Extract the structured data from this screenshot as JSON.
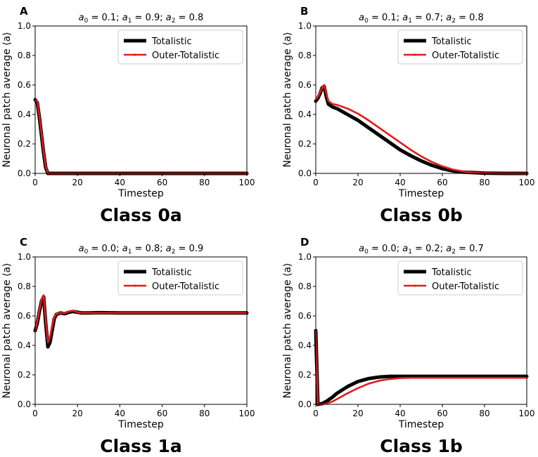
{
  "chart_data": [
    {
      "type": "line",
      "panel": "A",
      "params": "a0 = 0.1; a1 = 0.9; a2 = 0.8",
      "param_values": {
        "a0": "0.1",
        "a1": "0.9",
        "a2": "0.8"
      },
      "xlabel": "Timestep",
      "ylabel": "Neuronal patch average ⟨a⟩",
      "class_label": "Class 0a",
      "xlim": [
        0,
        100
      ],
      "ylim": [
        0,
        1
      ],
      "x_ticks": [
        0,
        20,
        40,
        60,
        80,
        100
      ],
      "y_ticks": [
        "0.0",
        "0.2",
        "0.4",
        "0.6",
        "0.8",
        "1.0"
      ],
      "legend": [
        "Totalistic",
        "Outer-Totalistic"
      ],
      "series": [
        {
          "name": "Totalistic",
          "color": "#000000",
          "points": [
            [
              0,
              0.5
            ],
            [
              1,
              0.48
            ],
            [
              2,
              0.38
            ],
            [
              3,
              0.26
            ],
            [
              4,
              0.14
            ],
            [
              5,
              0.04
            ],
            [
              6,
              0.0
            ],
            [
              10,
              0.0
            ],
            [
              100,
              0.0
            ]
          ]
        },
        {
          "name": "Outer-Totalistic",
          "color": "#e31a1c",
          "points": [
            [
              0,
              0.5
            ],
            [
              1,
              0.49
            ],
            [
              2,
              0.39
            ],
            [
              3,
              0.27
            ],
            [
              4,
              0.15
            ],
            [
              5,
              0.05
            ],
            [
              6,
              0.0
            ],
            [
              10,
              0.0
            ],
            [
              100,
              0.0
            ]
          ]
        }
      ]
    },
    {
      "type": "line",
      "panel": "B",
      "params": "a0 = 0.1; a1 = 0.7; a2 = 0.8",
      "param_values": {
        "a0": "0.1",
        "a1": "0.7",
        "a2": "0.8"
      },
      "xlabel": "Timestep",
      "ylabel": "Neuronal patch average ⟨a⟩",
      "class_label": "Class 0b",
      "xlim": [
        0,
        100
      ],
      "ylim": [
        0,
        1
      ],
      "x_ticks": [
        0,
        20,
        40,
        60,
        80,
        100
      ],
      "y_ticks": [
        "0.0",
        "0.2",
        "0.4",
        "0.6",
        "0.8",
        "1.0"
      ],
      "legend": [
        "Totalistic",
        "Outer-Totalistic"
      ],
      "series": [
        {
          "name": "Totalistic",
          "color": "#000000",
          "points": [
            [
              0,
              0.49
            ],
            [
              1,
              0.51
            ],
            [
              2,
              0.54
            ],
            [
              3,
              0.58
            ],
            [
              4,
              0.59
            ],
            [
              5,
              0.52
            ],
            [
              6,
              0.47
            ],
            [
              8,
              0.45
            ],
            [
              10,
              0.44
            ],
            [
              15,
              0.4
            ],
            [
              20,
              0.36
            ],
            [
              25,
              0.31
            ],
            [
              30,
              0.26
            ],
            [
              35,
              0.21
            ],
            [
              40,
              0.16
            ],
            [
              45,
              0.12
            ],
            [
              50,
              0.085
            ],
            [
              55,
              0.055
            ],
            [
              60,
              0.032
            ],
            [
              65,
              0.017
            ],
            [
              70,
              0.008
            ],
            [
              80,
              0.002
            ],
            [
              90,
              0.0
            ],
            [
              100,
              0.0
            ]
          ]
        },
        {
          "name": "Outer-Totalistic",
          "color": "#e31a1c",
          "points": [
            [
              0,
              0.5
            ],
            [
              1,
              0.52
            ],
            [
              2,
              0.55
            ],
            [
              3,
              0.58
            ],
            [
              4,
              0.6
            ],
            [
              5,
              0.54
            ],
            [
              6,
              0.49
            ],
            [
              8,
              0.47
            ],
            [
              10,
              0.465
            ],
            [
              15,
              0.44
            ],
            [
              20,
              0.405
            ],
            [
              25,
              0.36
            ],
            [
              30,
              0.31
            ],
            [
              35,
              0.26
            ],
            [
              40,
              0.21
            ],
            [
              45,
              0.16
            ],
            [
              50,
              0.115
            ],
            [
              55,
              0.078
            ],
            [
              60,
              0.048
            ],
            [
              65,
              0.026
            ],
            [
              70,
              0.013
            ],
            [
              75,
              0.005
            ],
            [
              80,
              0.002
            ],
            [
              90,
              0.0
            ],
            [
              100,
              0.0
            ]
          ]
        }
      ]
    },
    {
      "type": "line",
      "panel": "C",
      "params": "a0 = 0.0; a1 = 0.8; a2 = 0.9",
      "param_values": {
        "a0": "0.0",
        "a1": "0.8",
        "a2": "0.9"
      },
      "xlabel": "Timestep",
      "ylabel": "Neuronal patch average ⟨a⟩",
      "class_label": "Class 1a",
      "xlim": [
        0,
        100
      ],
      "ylim": [
        0,
        1
      ],
      "x_ticks": [
        0,
        20,
        40,
        60,
        80,
        100
      ],
      "y_ticks": [
        "0.0",
        "0.2",
        "0.4",
        "0.6",
        "0.8",
        "1.0"
      ],
      "legend": [
        "Totalistic",
        "Outer-Totalistic"
      ],
      "series": [
        {
          "name": "Totalistic",
          "color": "#000000",
          "points": [
            [
              0,
              0.5
            ],
            [
              1,
              0.55
            ],
            [
              2,
              0.63
            ],
            [
              3,
              0.7
            ],
            [
              4,
              0.73
            ],
            [
              5,
              0.55
            ],
            [
              6,
              0.39
            ],
            [
              7,
              0.42
            ],
            [
              8,
              0.5
            ],
            [
              9,
              0.58
            ],
            [
              10,
              0.61
            ],
            [
              12,
              0.62
            ],
            [
              14,
              0.615
            ],
            [
              16,
              0.625
            ],
            [
              18,
              0.63
            ],
            [
              20,
              0.625
            ],
            [
              22,
              0.62
            ],
            [
              25,
              0.62
            ],
            [
              30,
              0.622
            ],
            [
              40,
              0.62
            ],
            [
              50,
              0.62
            ],
            [
              60,
              0.62
            ],
            [
              70,
              0.62
            ],
            [
              80,
              0.62
            ],
            [
              90,
              0.62
            ],
            [
              100,
              0.62
            ]
          ]
        },
        {
          "name": "Outer-Totalistic",
          "color": "#e31a1c",
          "points": [
            [
              0,
              0.5
            ],
            [
              1,
              0.56
            ],
            [
              2,
              0.64
            ],
            [
              3,
              0.71
            ],
            [
              4,
              0.74
            ],
            [
              5,
              0.57
            ],
            [
              6,
              0.42
            ],
            [
              7,
              0.46
            ],
            [
              8,
              0.53
            ],
            [
              9,
              0.59
            ],
            [
              10,
              0.615
            ],
            [
              12,
              0.62
            ],
            [
              14,
              0.62
            ],
            [
              16,
              0.63
            ],
            [
              18,
              0.635
            ],
            [
              20,
              0.625
            ],
            [
              22,
              0.62
            ],
            [
              25,
              0.62
            ],
            [
              30,
              0.62
            ],
            [
              40,
              0.62
            ],
            [
              50,
              0.62
            ],
            [
              60,
              0.62
            ],
            [
              70,
              0.62
            ],
            [
              80,
              0.62
            ],
            [
              90,
              0.62
            ],
            [
              100,
              0.62
            ]
          ]
        }
      ]
    },
    {
      "type": "line",
      "panel": "D",
      "params": "a0 = 0.0; a1 = 0.2; a2 = 0.7",
      "param_values": {
        "a0": "0.0",
        "a1": "0.2",
        "a2": "0.7"
      },
      "xlabel": "Timestep",
      "ylabel": "Neuronal patch average ⟨a⟩",
      "class_label": "Class 1b",
      "xlim": [
        0,
        100
      ],
      "ylim": [
        0,
        1
      ],
      "x_ticks": [
        0,
        20,
        40,
        60,
        80,
        100
      ],
      "y_ticks": [
        "0.0",
        "0.2",
        "0.4",
        "0.6",
        "0.8",
        "1.0"
      ],
      "legend": [
        "Totalistic",
        "Outer-Totalistic"
      ],
      "series": [
        {
          "name": "Totalistic",
          "color": "#000000",
          "points": [
            [
              0,
              0.5
            ],
            [
              0.5,
              0.25
            ],
            [
              1,
              0.0
            ],
            [
              3,
              0.005
            ],
            [
              5,
              0.02
            ],
            [
              8,
              0.05
            ],
            [
              10,
              0.075
            ],
            [
              15,
              0.12
            ],
            [
              20,
              0.155
            ],
            [
              25,
              0.175
            ],
            [
              30,
              0.185
            ],
            [
              35,
              0.19
            ],
            [
              40,
              0.19
            ],
            [
              50,
              0.19
            ],
            [
              60,
              0.19
            ],
            [
              70,
              0.19
            ],
            [
              80,
              0.19
            ],
            [
              90,
              0.19
            ],
            [
              100,
              0.19
            ]
          ]
        },
        {
          "name": "Outer-Totalistic",
          "color": "#e31a1c",
          "points": [
            [
              0,
              0.5
            ],
            [
              0.5,
              0.25
            ],
            [
              1,
              0.0
            ],
            [
              3,
              0.0
            ],
            [
              5,
              0.005
            ],
            [
              8,
              0.02
            ],
            [
              10,
              0.035
            ],
            [
              15,
              0.075
            ],
            [
              20,
              0.11
            ],
            [
              25,
              0.14
            ],
            [
              30,
              0.16
            ],
            [
              35,
              0.172
            ],
            [
              40,
              0.178
            ],
            [
              45,
              0.18
            ],
            [
              50,
              0.18
            ],
            [
              60,
              0.18
            ],
            [
              70,
              0.18
            ],
            [
              80,
              0.18
            ],
            [
              90,
              0.18
            ],
            [
              100,
              0.18
            ]
          ]
        }
      ]
    }
  ]
}
